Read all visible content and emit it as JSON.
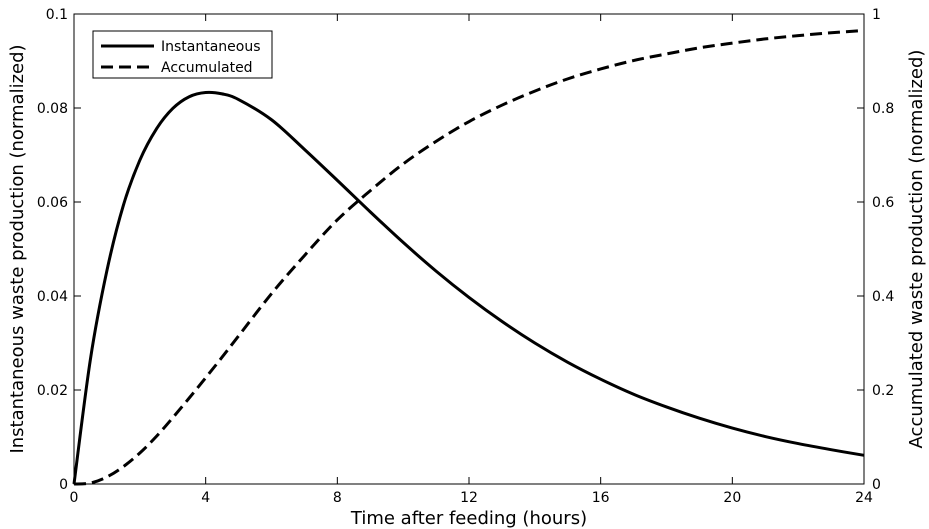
{
  "chart_data": {
    "type": "line",
    "title": "",
    "xlabel": "Time after feeding (hours)",
    "ylabel_left": "Instantaneous waste production (normalized)",
    "ylabel_right": "Accumulated waste production (normalized)",
    "xlim": [
      0,
      24
    ],
    "ylim_left": [
      0,
      0.1
    ],
    "ylim_right": [
      0,
      1
    ],
    "x_ticks": [
      0,
      4,
      8,
      12,
      16,
      20,
      24
    ],
    "x_tick_labels": [
      "0",
      "4",
      "8",
      "12",
      "16",
      "20",
      "24"
    ],
    "y_left_ticks": [
      0,
      0.02,
      0.04,
      0.06,
      0.08,
      0.1
    ],
    "y_left_tick_labels": [
      "0",
      "0.02",
      "0.04",
      "0.06",
      "0.08",
      "0.1"
    ],
    "y_right_ticks": [
      0,
      0.2,
      0.4,
      0.6,
      0.8,
      1
    ],
    "y_right_tick_labels": [
      "0",
      "0.2",
      "0.4",
      "0.6",
      "0.8",
      "1"
    ],
    "grid": false,
    "legend_position": "top-left",
    "series": [
      {
        "name": "Instantaneous",
        "axis": "left",
        "style": "solid",
        "color": "#000000",
        "x": [
          0,
          0.5,
          1,
          1.5,
          2,
          2.5,
          3,
          3.5,
          4,
          4.5,
          5,
          6,
          7,
          8,
          9,
          10,
          11,
          12,
          13,
          14,
          15,
          16,
          17,
          18,
          19,
          20,
          21,
          22,
          23,
          24
        ],
        "y": [
          0,
          0.0266,
          0.0454,
          0.0593,
          0.0689,
          0.0755,
          0.0799,
          0.0824,
          0.0833,
          0.083,
          0.0818,
          0.0775,
          0.0712,
          0.0646,
          0.0579,
          0.0514,
          0.0453,
          0.0397,
          0.0346,
          0.03,
          0.0259,
          0.0223,
          0.0191,
          0.0164,
          0.014,
          0.0119,
          0.0101,
          0.0086,
          0.0073,
          0.0061
        ]
      },
      {
        "name": "Accumulated",
        "axis": "right",
        "style": "dashed",
        "color": "#000000",
        "x": [
          0,
          0.5,
          1,
          1.5,
          2,
          2.5,
          3,
          3.5,
          4,
          4.5,
          5,
          6,
          7,
          8,
          9,
          10,
          11,
          12,
          13,
          14,
          15,
          16,
          17,
          18,
          19,
          20,
          21,
          22,
          23,
          24
        ],
        "y": [
          0,
          0.002,
          0.015,
          0.037,
          0.066,
          0.101,
          0.141,
          0.183,
          0.226,
          0.27,
          0.315,
          0.405,
          0.486,
          0.562,
          0.624,
          0.681,
          0.729,
          0.771,
          0.806,
          0.836,
          0.862,
          0.883,
          0.901,
          0.915,
          0.928,
          0.938,
          0.947,
          0.954,
          0.96,
          0.965
        ]
      }
    ]
  }
}
